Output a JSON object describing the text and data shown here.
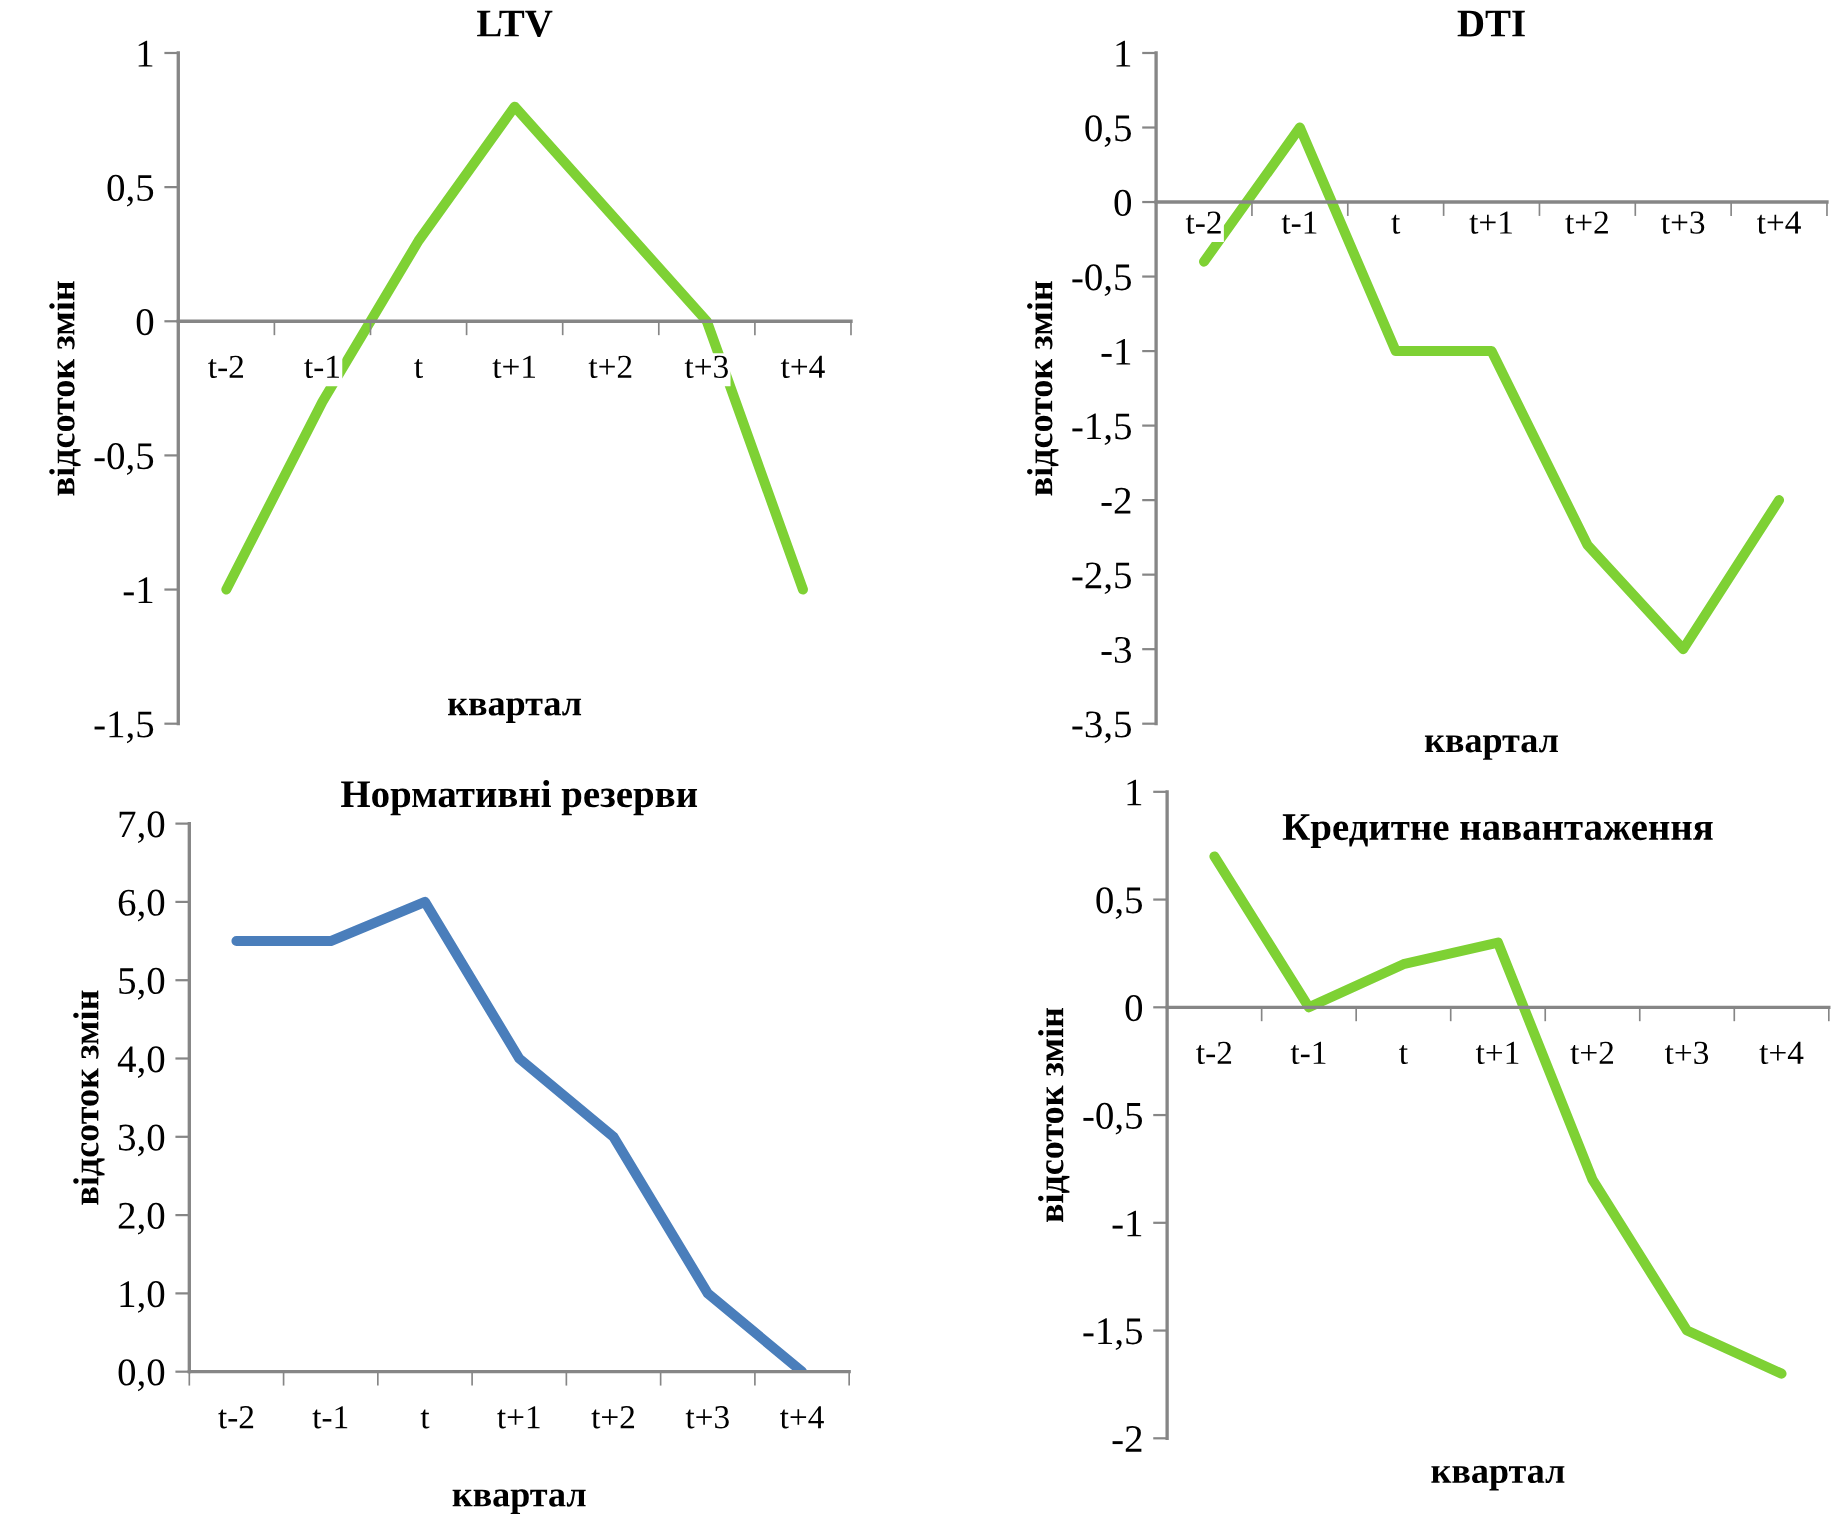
{
  "chart_data": [
    {
      "type": "line",
      "title": "LTV",
      "xlabel": "квартал",
      "ylabel": "відсоток змін",
      "categories": [
        "t-2",
        "t-1",
        "t",
        "t+1",
        "t+2",
        "t+3",
        "t+4"
      ],
      "series": [
        {
          "color": "#7ed134",
          "values": [
            -1,
            -0.3,
            0.3,
            0.8,
            0.4,
            0,
            -1
          ]
        }
      ],
      "ylim": [
        -1.5,
        1
      ],
      "yticks": [
        {
          "value": -1.5,
          "label": "-1,5"
        },
        -1,
        {
          "value": -0.5,
          "label": "-0,5"
        },
        0,
        {
          "value": 0.5,
          "label": "0,5"
        },
        1
      ]
    },
    {
      "type": "line",
      "title": "DTI",
      "xlabel": "квартал",
      "ylabel": "відсоток змін",
      "categories": [
        "t-2",
        "t-1",
        "t",
        "t+1",
        "t+2",
        "t+3",
        "t+4"
      ],
      "series": [
        {
          "color": "#7ed134",
          "values": [
            -0.4,
            0.5,
            -1,
            -1,
            -2.3,
            -3,
            -2
          ]
        }
      ],
      "ylim": [
        -3.5,
        1
      ],
      "yticks": [
        {
          "value": -3.5,
          "label": "-3,5"
        },
        -3,
        {
          "value": -2.5,
          "label": "-2,5"
        },
        -2,
        {
          "value": -1.5,
          "label": "-1,5"
        },
        -1,
        {
          "value": -0.5,
          "label": "-0,5"
        },
        0,
        {
          "value": 0.5,
          "label": "0,5"
        },
        1
      ]
    },
    {
      "type": "line",
      "title": "Нормативні резерви",
      "xlabel": "квартал",
      "ylabel": "відсоток змін",
      "categories": [
        "t-2",
        "t-1",
        "t",
        "t+1",
        "t+2",
        "t+3",
        "t+4"
      ],
      "series": [
        {
          "color": "#4a7ebb",
          "values": [
            5.5,
            5.5,
            6,
            4,
            3,
            1,
            0
          ]
        }
      ],
      "ylim": [
        0,
        7
      ],
      "yticks": [
        {
          "value": 0,
          "label": "0,0"
        },
        {
          "value": 1,
          "label": "1,0"
        },
        {
          "value": 2,
          "label": "2,0"
        },
        {
          "value": 3,
          "label": "3,0"
        },
        {
          "value": 4,
          "label": "4,0"
        },
        {
          "value": 5,
          "label": "5,0"
        },
        {
          "value": 6,
          "label": "6,0"
        },
        {
          "value": 7,
          "label": "7,0"
        }
      ]
    },
    {
      "type": "line",
      "title": "Кредитне навантаження",
      "xlabel": "квартал",
      "ylabel": "відсоток змін",
      "categories": [
        "t-2",
        "t-1",
        "t",
        "t+1",
        "t+2",
        "t+3",
        "t+4"
      ],
      "series": [
        {
          "color": "#7ed134",
          "values": [
            0.7,
            0,
            0.2,
            0.3,
            -0.8,
            -1.5,
            -1.7
          ]
        }
      ],
      "ylim": [
        -2,
        1
      ],
      "yticks": [
        -2,
        {
          "value": -1.5,
          "label": "-1,5"
        },
        -1,
        {
          "value": -0.5,
          "label": "-0,5"
        },
        0,
        {
          "value": 0.5,
          "label": "0,5"
        },
        1
      ]
    }
  ]
}
